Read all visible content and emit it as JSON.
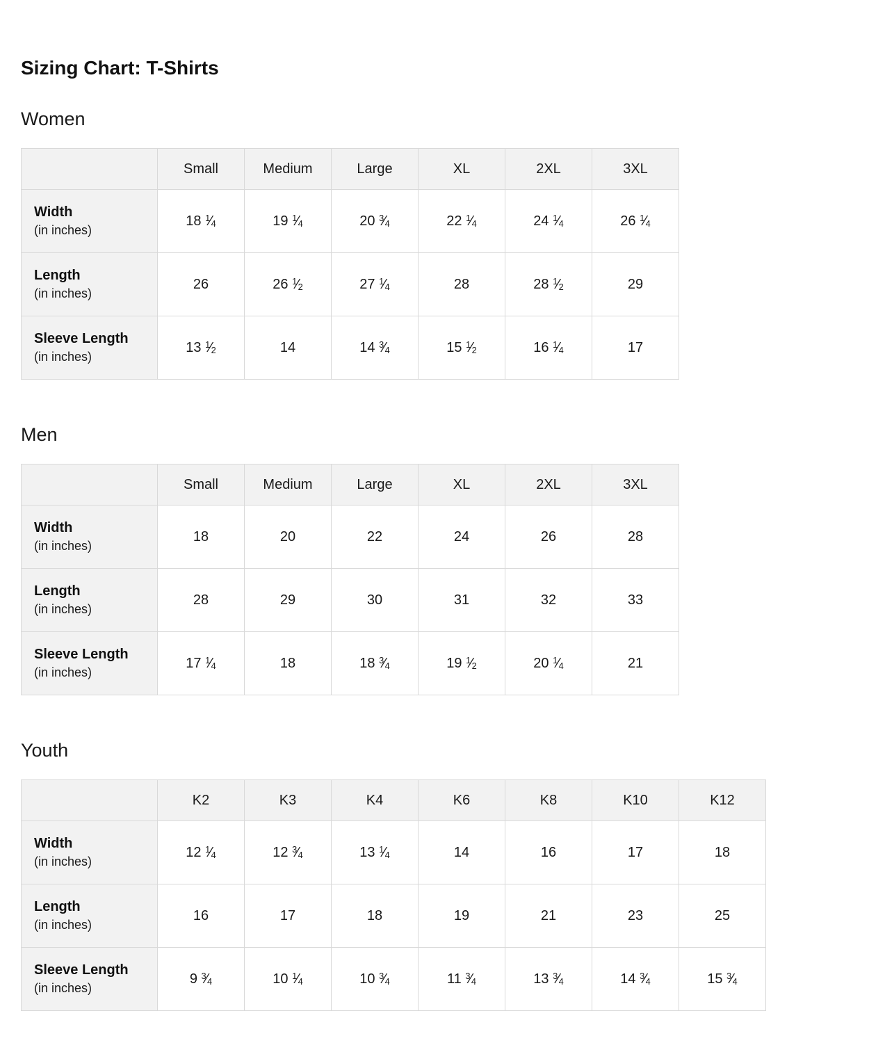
{
  "page": {
    "title": "Sizing Chart: T-Shirts"
  },
  "colors": {
    "background": "#ffffff",
    "table_border": "#d9d9d9",
    "header_bg": "#f2f2f2",
    "text": "#111111"
  },
  "tables": [
    {
      "heading": "Women",
      "columns": [
        "Small",
        "Medium",
        "Large",
        "XL",
        "2XL",
        "3XL"
      ],
      "rows": [
        {
          "label": "Width",
          "sublabel": "(in inches)",
          "values": [
            "18 1/4",
            "19 1/4",
            "20 3/4",
            "22 1/4",
            "24 1/4",
            "26 1/4"
          ]
        },
        {
          "label": "Length",
          "sublabel": "(in inches)",
          "values": [
            "26",
            "26 1/2",
            "27 1/4",
            "28",
            "28 1/2",
            "29"
          ]
        },
        {
          "label": "Sleeve Length",
          "sublabel": "(in inches)",
          "values": [
            "13 1/2",
            "14",
            "14 3/4",
            "15 1/2",
            "16 1/4",
            "17"
          ]
        }
      ]
    },
    {
      "heading": "Men",
      "columns": [
        "Small",
        "Medium",
        "Large",
        "XL",
        "2XL",
        "3XL"
      ],
      "rows": [
        {
          "label": "Width",
          "sublabel": "(in inches)",
          "values": [
            "18",
            "20",
            "22",
            "24",
            "26",
            "28"
          ]
        },
        {
          "label": "Length",
          "sublabel": "(in inches)",
          "values": [
            "28",
            "29",
            "30",
            "31",
            "32",
            "33"
          ]
        },
        {
          "label": "Sleeve Length",
          "sublabel": "(in inches)",
          "values": [
            "17 1/4",
            "18",
            "18 3/4",
            "19 1/2",
            "20 1/4",
            "21"
          ]
        }
      ]
    },
    {
      "heading": "Youth",
      "columns": [
        "K2",
        "K3",
        "K4",
        "K6",
        "K8",
        "K10",
        "K12"
      ],
      "rows": [
        {
          "label": "Width",
          "sublabel": "(in inches)",
          "values": [
            "12 1/4",
            "12 3/4",
            "13 1/4",
            "14",
            "16",
            "17",
            "18"
          ]
        },
        {
          "label": "Length",
          "sublabel": "(in inches)",
          "values": [
            "16",
            "17",
            "18",
            "19",
            "21",
            "23",
            "25"
          ]
        },
        {
          "label": "Sleeve Length",
          "sublabel": "(in inches)",
          "values": [
            "9 3/4",
            "10 1/4",
            "10 3/4",
            "11 3/4",
            "13 3/4",
            "14 3/4",
            "15 3/4"
          ]
        }
      ]
    }
  ]
}
